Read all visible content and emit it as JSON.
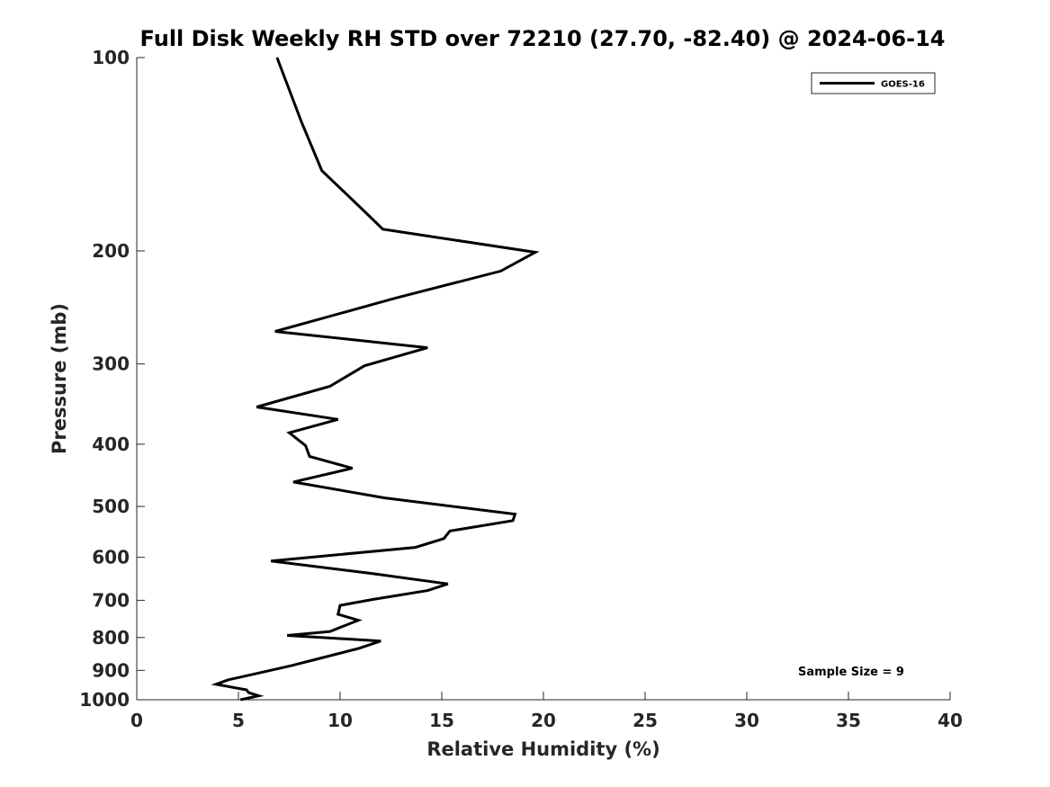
{
  "chart_data": {
    "type": "line",
    "title": "Full Disk Weekly RH STD over 72210 (27.70, -82.40) @ 2024-06-14",
    "xlabel": "Relative Humidity (%)",
    "ylabel": "Pressure (mb)",
    "xlim": [
      0,
      40
    ],
    "ylim": [
      100,
      1000
    ],
    "yscale": "log",
    "y_reversed": true,
    "xticks": [
      0,
      5,
      10,
      15,
      20,
      25,
      30,
      35,
      40
    ],
    "yticks": [
      100,
      200,
      300,
      400,
      500,
      600,
      700,
      800,
      900,
      1000
    ],
    "grid": false,
    "legend_position": "top-right",
    "annotation": "Sample Size = 9",
    "series": [
      {
        "name": "GOES-16",
        "color": "#000000",
        "points": [
          [
            6.9,
            100
          ],
          [
            8.1,
            126
          ],
          [
            9.1,
            150
          ],
          [
            10.9,
            170
          ],
          [
            12.1,
            185
          ],
          [
            19.6,
            201
          ],
          [
            17.9,
            215
          ],
          [
            12.7,
            237
          ],
          [
            6.8,
            267
          ],
          [
            14.3,
            283
          ],
          [
            11.2,
            302
          ],
          [
            9.5,
            325
          ],
          [
            5.9,
            350
          ],
          [
            9.9,
            366
          ],
          [
            7.5,
            384
          ],
          [
            8.3,
            402
          ],
          [
            8.5,
            418
          ],
          [
            10.6,
            436
          ],
          [
            7.7,
            458
          ],
          [
            12.2,
            485
          ],
          [
            18.6,
            514
          ],
          [
            18.5,
            526
          ],
          [
            15.4,
            546
          ],
          [
            15.1,
            561
          ],
          [
            13.7,
            579
          ],
          [
            6.6,
            608
          ],
          [
            11.6,
            636
          ],
          [
            15.3,
            660
          ],
          [
            14.3,
            676
          ],
          [
            11.6,
            698
          ],
          [
            10.0,
            713
          ],
          [
            9.9,
            736
          ],
          [
            10.9,
            752
          ],
          [
            9.5,
            783
          ],
          [
            7.4,
            794
          ],
          [
            12.0,
            810
          ],
          [
            10.9,
            832
          ],
          [
            9.0,
            862
          ],
          [
            7.6,
            885
          ],
          [
            5.7,
            913
          ],
          [
            4.5,
            931
          ],
          [
            3.9,
            946
          ],
          [
            5.4,
            965
          ],
          [
            5.5,
            975
          ],
          [
            6.0,
            986
          ],
          [
            5.1,
            1000
          ]
        ]
      }
    ]
  }
}
